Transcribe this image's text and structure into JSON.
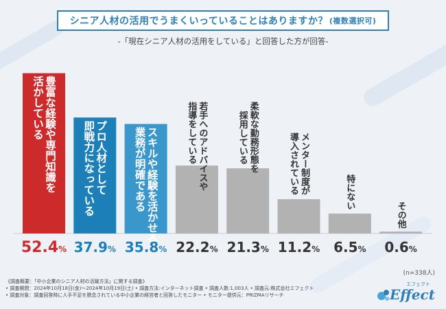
{
  "title": "シニア人材の活用でうまくいっていることはありますか？",
  "title_tag": "(複数選択可)",
  "subtitle": "-「現在シニア人材の活用をしている」と回答した方が回答-",
  "n_note": "(n=338人)",
  "footer": [
    "《調査概要：「中小企業のシニア人材の活躍方法」に関する調査》",
    "• 調査期間：2024年10月18日(金)〜2024年10月19日(土) • 調査方法:インターネット調査 • 調査人数:1,003人 • 調査元:株式会社エフェクト",
    "• 調査対象：調査回答時に人手不足を懸念されている中小企業の経営者と回答したモニター • モニター提供元：PRIZMAリサーチ"
  ],
  "logo": {
    "main": "Effect",
    "sub": "エフェクト"
  },
  "colors": {
    "top1": "#cd2b2b",
    "top2": "#1d7fb8",
    "top3": "#3a97cc",
    "other": "#b2b2b2",
    "accent": "#2f7fb4"
  },
  "chart_data": {
    "type": "bar",
    "title": "シニア人材の活用でうまくいっていることはありますか？(複数選択可)",
    "categories": [
      "豊富な経験や専門知識を活かしている",
      "プロ人材として即戦力になっている",
      "スキルや経験を活かせる業務が明確である",
      "若手へのアドバイスや指導をしている",
      "柔軟な勤務形態を採用している",
      "メンター制度が導入されている",
      "特にない",
      "その他"
    ],
    "labels": [
      [
        "豊富な経験や専門知識を",
        "活かしている"
      ],
      [
        "プロ人材として",
        "即戦力になっている"
      ],
      [
        "スキルや経験を活かせる",
        "業務が明確である"
      ],
      [
        "若手へのアドバイスや",
        "指導をしている"
      ],
      [
        "柔軟な勤務形態を",
        "採用している"
      ],
      [
        "メンター制度が",
        "導入されている"
      ],
      [
        "特にない"
      ],
      [
        "その他"
      ]
    ],
    "values": [
      52.4,
      37.9,
      35.8,
      22.2,
      21.3,
      11.2,
      6.5,
      0.6
    ],
    "value_labels": [
      "52.4%",
      "37.9%",
      "35.8%",
      "22.2%",
      "21.3%",
      "11.2%",
      "6.5%",
      "0.6%"
    ],
    "unit": "%",
    "ylim": [
      0,
      55
    ]
  }
}
